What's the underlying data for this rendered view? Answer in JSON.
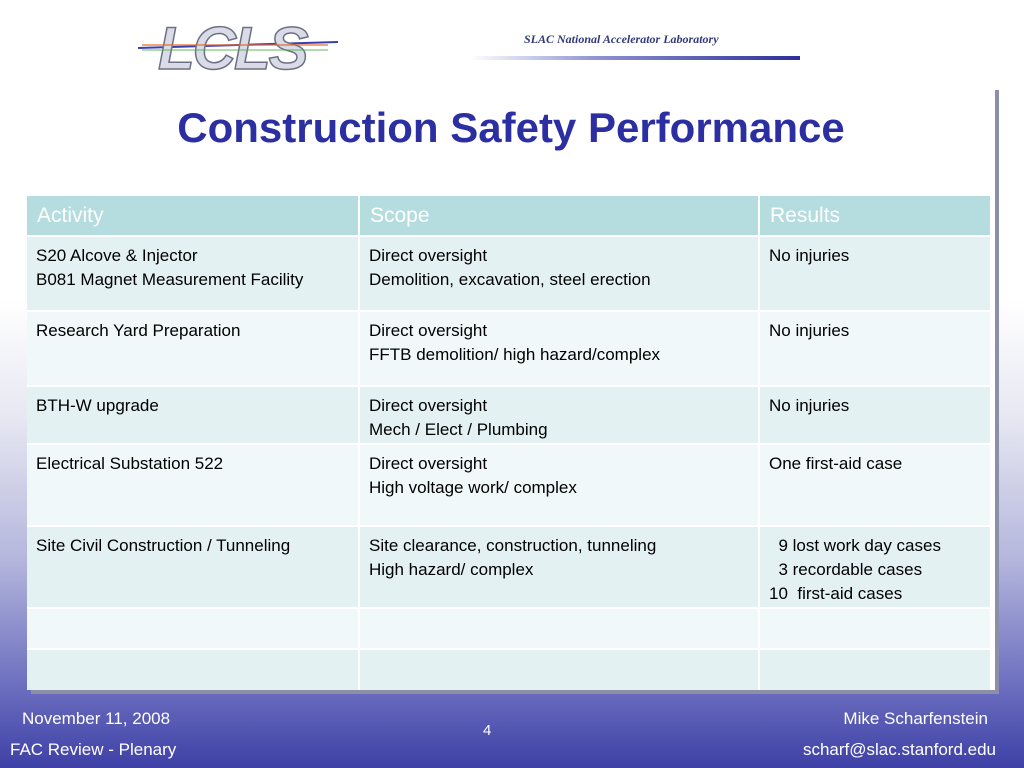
{
  "header": {
    "logo_text": "LCLS",
    "lab_name": "SLAC National Accelerator Laboratory"
  },
  "slide": {
    "title": "Construction Safety Performance"
  },
  "table": {
    "headers": [
      "Activity",
      "Scope",
      "Results"
    ],
    "rows": [
      {
        "activity": "S20 Alcove & Injector\nB081 Magnet Measurement Facility",
        "scope": "Direct oversight\nDemolition, excavation, steel erection",
        "results": "No injuries"
      },
      {
        "activity": "Research Yard Preparation",
        "scope": "Direct oversight\nFFTB demolition/ high hazard/complex",
        "results": "No injuries"
      },
      {
        "activity": "BTH-W upgrade",
        "scope": "Direct oversight\nMech / Elect / Plumbing",
        "results": "No injuries"
      },
      {
        "activity": "Electrical Substation 522",
        "scope": "Direct oversight\nHigh voltage work/ complex",
        "results": "One first-aid case"
      },
      {
        "activity": "Site Civil Construction / Tunneling",
        "scope": "Site clearance, construction, tunneling\nHigh hazard/ complex",
        "results": "  9 lost work day cases\n  3 recordable cases\n10  first-aid cases"
      },
      {
        "activity": "",
        "scope": "",
        "results": ""
      },
      {
        "activity": "",
        "scope": "",
        "results": ""
      }
    ]
  },
  "footer": {
    "date": "November 11, 2008",
    "event": "FAC Review - Plenary",
    "page_number": "4",
    "presenter": "Mike Scharfenstein",
    "email": "scharf@slac.stanford.edu"
  }
}
